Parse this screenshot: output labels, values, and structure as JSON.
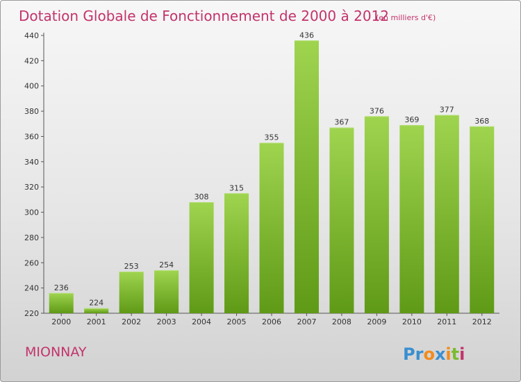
{
  "chart_data": {
    "type": "bar",
    "title": "Dotation Globale de Fonctionnement de 2000 à 2012",
    "subtitle": "(en milliers d'€)",
    "categories": [
      "2000",
      "2001",
      "2002",
      "2003",
      "2004",
      "2005",
      "2006",
      "2007",
      "2008",
      "2009",
      "2010",
      "2011",
      "2012"
    ],
    "values": [
      236,
      224,
      253,
      254,
      308,
      315,
      355,
      436,
      367,
      376,
      369,
      377,
      368
    ],
    "ylim": [
      220,
      440
    ],
    "yticks": [
      220,
      240,
      260,
      280,
      300,
      320,
      340,
      360,
      380,
      400,
      420,
      440
    ],
    "grid": false,
    "bar_color": "#7cbb2e",
    "bar_color_light": "#9fd44f",
    "bar_color_dark": "#5f9a16"
  },
  "footer": {
    "commune": "MIONNAY",
    "logo": {
      "text": "Proxiti",
      "letters": [
        {
          "ch": "P",
          "color": "#3a8fd0"
        },
        {
          "ch": "r",
          "color": "#3a8fd0"
        },
        {
          "ch": "o",
          "color": "#f28b1c"
        },
        {
          "ch": "x",
          "color": "#3a8fd0"
        },
        {
          "ch": "i",
          "color": "#f28b1c"
        },
        {
          "ch": "t",
          "color": "#7cbb2e"
        },
        {
          "ch": "i",
          "color": "#c3336b"
        }
      ]
    }
  }
}
